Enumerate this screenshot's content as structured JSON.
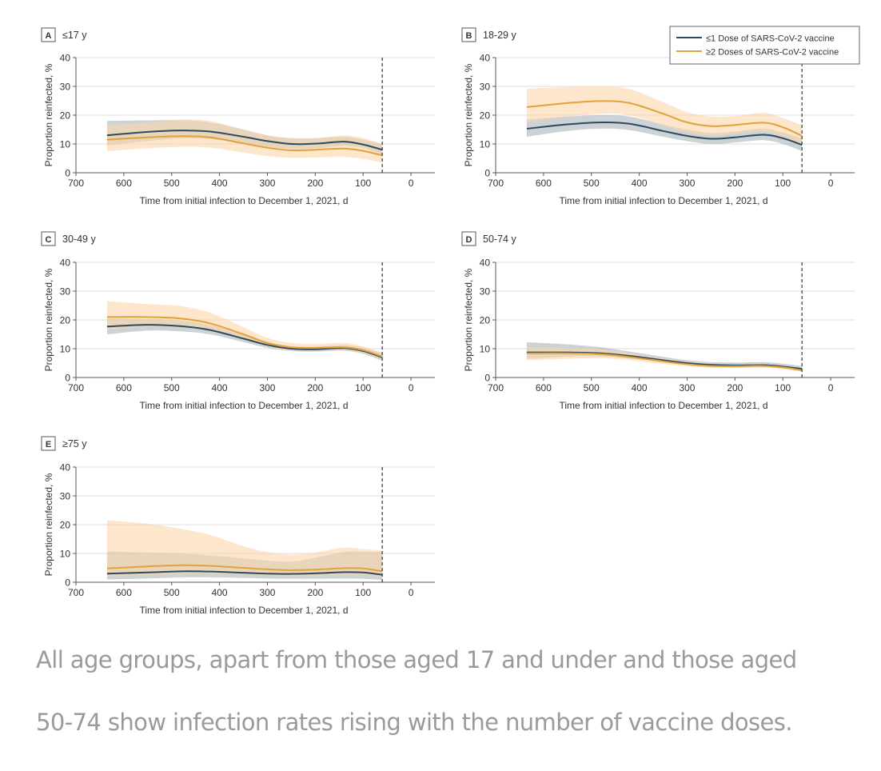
{
  "chart_data": [
    {
      "type": "line",
      "panel": "A",
      "title": "≤17 y",
      "xlabel": "Time from initial infection to December 1, 2021, d",
      "ylabel": "Proportion reinfected, %",
      "xlim": [
        700,
        -50
      ],
      "ylim": [
        0,
        40
      ],
      "xticks": [
        700,
        600,
        500,
        400,
        300,
        200,
        100,
        0
      ],
      "yticks": [
        0,
        10,
        20,
        30,
        40
      ],
      "grid": true,
      "reference_line_x": 60,
      "x": [
        635,
        550,
        480,
        420,
        350,
        300,
        250,
        200,
        140,
        100,
        60
      ],
      "series": [
        {
          "name": "≤1 Dose of SARS-CoV-2 vaccine",
          "color": "#2e4a5c",
          "values": [
            13,
            14.2,
            14.7,
            14.3,
            12.5,
            11,
            10,
            10.1,
            10.8,
            9.8,
            8
          ],
          "ci_low": [
            9.5,
            11,
            12,
            11.7,
            10.5,
            9,
            8.3,
            8.5,
            9.3,
            8.5,
            6.3
          ],
          "ci_high": [
            18,
            18.2,
            18.3,
            17.5,
            15,
            13,
            12,
            12,
            12.5,
            11.5,
            10
          ]
        },
        {
          "name": "≥2 Doses of SARS-CoV-2 vaccine",
          "color": "#e0a23a",
          "values": [
            11.5,
            12.3,
            12.7,
            12.3,
            10.2,
            8.7,
            7.8,
            8,
            8.4,
            7.6,
            6
          ],
          "ci_low": [
            7.5,
            8.5,
            9,
            8.7,
            7,
            5.8,
            5.2,
            5.3,
            5.5,
            4.8,
            3.5
          ],
          "ci_high": [
            16.5,
            17.5,
            18.5,
            18,
            15,
            13,
            12,
            12,
            13,
            12,
            10
          ]
        }
      ]
    },
    {
      "type": "line",
      "panel": "B",
      "title": "18-29 y",
      "xlabel": "Time from initial infection to December 1, 2021, d",
      "ylabel": "Proportion reinfected, %",
      "xlim": [
        700,
        -50
      ],
      "ylim": [
        0,
        40
      ],
      "xticks": [
        700,
        600,
        500,
        400,
        300,
        200,
        100,
        0
      ],
      "yticks": [
        0,
        10,
        20,
        30,
        40
      ],
      "grid": true,
      "reference_line_x": 60,
      "legend": {
        "placement": "top-right",
        "entries": [
          "≤1 Dose of SARS-CoV-2 vaccine",
          "≥2 Doses of SARS-CoV-2 vaccine"
        ]
      },
      "x": [
        635,
        550,
        480,
        420,
        350,
        300,
        250,
        200,
        140,
        100,
        60
      ],
      "series": [
        {
          "name": "≤1 Dose of SARS-CoV-2 vaccine",
          "color": "#2e4a5c",
          "values": [
            15.3,
            16.8,
            17.5,
            17,
            14.5,
            12.8,
            11.8,
            12.3,
            13.2,
            12,
            9.7
          ],
          "ci_low": [
            12.5,
            14.5,
            15.3,
            14.8,
            12.5,
            11,
            10,
            10.5,
            11.3,
            10,
            7.5
          ],
          "ci_high": [
            18.5,
            19.5,
            20,
            19.5,
            16.8,
            15,
            13.8,
            14.3,
            15.3,
            14,
            12
          ]
        },
        {
          "name": "≥2 Doses of SARS-CoV-2 vaccine",
          "color": "#e0a23a",
          "values": [
            22.8,
            24.2,
            24.9,
            24.2,
            20.5,
            17.5,
            16.2,
            16.6,
            17.4,
            15.8,
            12.8
          ],
          "ci_low": [
            17.5,
            19.5,
            20.5,
            20,
            16.5,
            14,
            12.8,
            13.5,
            14.3,
            12.5,
            9.8
          ],
          "ci_high": [
            29.2,
            29.8,
            30,
            29,
            24.5,
            21,
            19.5,
            19.7,
            20.8,
            19,
            16.5
          ]
        }
      ]
    },
    {
      "type": "line",
      "panel": "C",
      "title": "30-49 y",
      "xlabel": "Time from initial infection to December 1, 2021, d",
      "ylabel": "Proportion reinfected, %",
      "xlim": [
        700,
        -50
      ],
      "ylim": [
        0,
        40
      ],
      "xticks": [
        700,
        600,
        500,
        400,
        300,
        200,
        100,
        0
      ],
      "yticks": [
        0,
        10,
        20,
        30,
        40
      ],
      "grid": true,
      "reference_line_x": 60,
      "x": [
        635,
        550,
        480,
        420,
        350,
        300,
        250,
        200,
        140,
        100,
        60
      ],
      "series": [
        {
          "name": "≤1 Dose of SARS-CoV-2 vaccine",
          "color": "#2e4a5c",
          "values": [
            17.7,
            18.3,
            17.8,
            16.5,
            13.5,
            11.3,
            10,
            9.8,
            10.2,
            9.2,
            7
          ],
          "ci_low": [
            15,
            16.3,
            16,
            15,
            12.3,
            10.3,
            9.2,
            9,
            9.3,
            8.2,
            5.8
          ],
          "ci_high": [
            20.5,
            20.3,
            19.8,
            18.2,
            14.8,
            12.3,
            10.9,
            10.7,
            11.2,
            10.3,
            8.4
          ]
        },
        {
          "name": "≥2 Doses of SARS-CoV-2 vaccine",
          "color": "#e0a23a",
          "values": [
            21,
            21,
            20.5,
            18.8,
            15,
            12,
            10.5,
            10.3,
            10.5,
            9.5,
            7.3
          ],
          "ci_low": [
            16.5,
            17.5,
            17.5,
            16.3,
            13.2,
            10.7,
            9.4,
            9.3,
            9.5,
            8.5,
            6.3
          ],
          "ci_high": [
            26.5,
            25.5,
            24.8,
            22.5,
            17.5,
            13.8,
            12,
            11.7,
            12,
            10.8,
            8.6
          ]
        }
      ]
    },
    {
      "type": "line",
      "panel": "D",
      "title": "50-74 y",
      "xlabel": "Time from initial infection to December 1, 2021, d",
      "ylabel": "Proportion reinfected, %",
      "xlim": [
        700,
        -50
      ],
      "ylim": [
        0,
        40
      ],
      "xticks": [
        700,
        600,
        500,
        400,
        300,
        200,
        100,
        0
      ],
      "yticks": [
        0,
        10,
        20,
        30,
        40
      ],
      "grid": true,
      "reference_line_x": 60,
      "x": [
        635,
        550,
        480,
        420,
        350,
        300,
        250,
        200,
        140,
        100,
        60
      ],
      "series": [
        {
          "name": "≤1 Dose of SARS-CoV-2 vaccine",
          "color": "#2e4a5c",
          "values": [
            8.7,
            8.7,
            8.4,
            7.5,
            6,
            5,
            4.4,
            4.2,
            4.3,
            3.8,
            3
          ],
          "ci_low": [
            6.5,
            7.2,
            7.3,
            6.6,
            5.3,
            4.4,
            3.9,
            3.7,
            3.8,
            3.2,
            2.4
          ],
          "ci_high": [
            12.3,
            11.5,
            10.5,
            9,
            7.2,
            6,
            5.3,
            5.2,
            5.3,
            4.8,
            4
          ]
        },
        {
          "name": "≥2 Doses of SARS-CoV-2 vaccine",
          "color": "#e0a23a",
          "values": [
            8.4,
            8.4,
            8.1,
            7.1,
            5.6,
            4.6,
            4,
            3.9,
            4,
            3.5,
            2.5
          ],
          "ci_low": [
            6,
            6.5,
            6.7,
            6,
            4.7,
            3.9,
            3.4,
            3.3,
            3.4,
            2.9,
            2
          ],
          "ci_high": [
            10.5,
            10.3,
            9.8,
            8.5,
            6.6,
            5.4,
            4.7,
            4.6,
            4.8,
            4.2,
            3.2
          ]
        }
      ]
    },
    {
      "type": "line",
      "panel": "E",
      "title": "≥75 y",
      "xlabel": "Time from initial infection to December 1, 2021, d",
      "ylabel": "Proportion reinfected, %",
      "xlim": [
        700,
        -50
      ],
      "ylim": [
        0,
        40
      ],
      "xticks": [
        700,
        600,
        500,
        400,
        300,
        200,
        100,
        0
      ],
      "yticks": [
        0,
        10,
        20,
        30,
        40
      ],
      "grid": true,
      "reference_line_x": 60,
      "x": [
        635,
        550,
        480,
        420,
        350,
        300,
        250,
        200,
        140,
        100,
        60
      ],
      "series": [
        {
          "name": "≤1 Dose of SARS-CoV-2 vaccine",
          "color": "#2e4a5c",
          "values": [
            3,
            3.4,
            3.8,
            3.7,
            3.3,
            3,
            2.9,
            3.1,
            3.5,
            3.4,
            2.6
          ],
          "ci_low": [
            1,
            1.3,
            1.7,
            1.7,
            1.5,
            1.3,
            1.2,
            1.2,
            1.3,
            1.2,
            0.8
          ],
          "ci_high": [
            10.7,
            10.3,
            10,
            9.3,
            8.3,
            7.5,
            7.2,
            8.5,
            10.5,
            10.6,
            10.5
          ]
        },
        {
          "name": "≥2 Doses of SARS-CoV-2 vaccine",
          "color": "#e0a23a",
          "values": [
            4.8,
            5.5,
            5.9,
            5.7,
            5,
            4.5,
            4.2,
            4.4,
            4.9,
            4.8,
            3.8
          ],
          "ci_low": [
            2,
            2.5,
            3,
            3,
            2.7,
            2.4,
            2.2,
            2.3,
            2.6,
            2.5,
            1.8
          ],
          "ci_high": [
            21.5,
            20.3,
            18.5,
            16.5,
            12.5,
            10.5,
            9.6,
            10.3,
            12,
            11.5,
            11
          ]
        }
      ]
    }
  ],
  "caption": {
    "line1": "All age groups, apart from those aged 17 and under and those aged",
    "line2": "50-74 show infection rates rising with the number of vaccine doses."
  },
  "colors": {
    "low_dose_line": "#2e4a5c",
    "high_dose_line": "#e0a23a",
    "low_dose_band": "#9aa7b0",
    "high_dose_band": "#fbd6aa"
  }
}
